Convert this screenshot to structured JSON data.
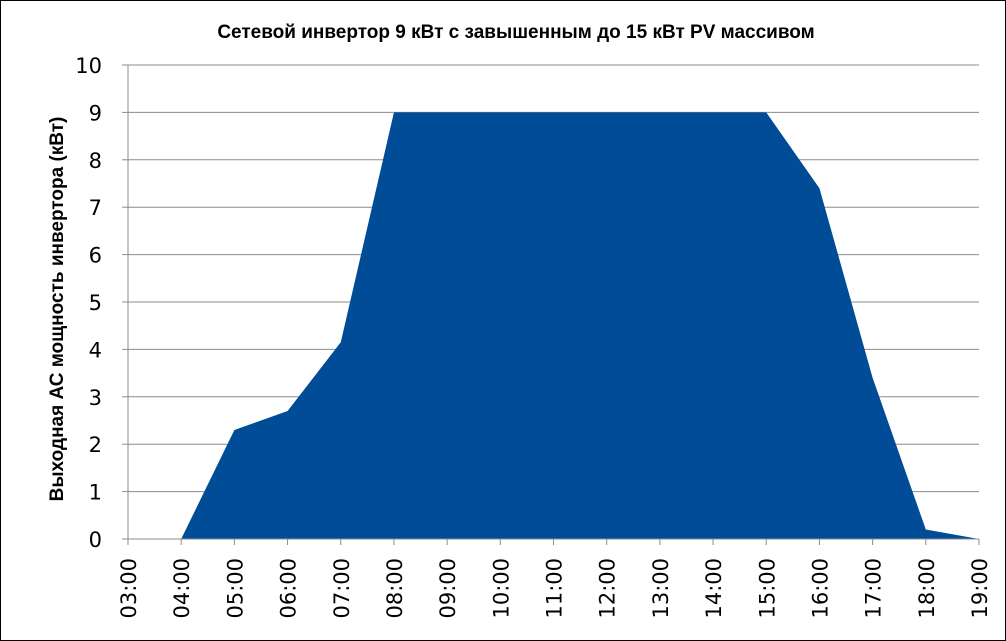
{
  "chart_data": {
    "type": "area",
    "title": "Сетевой инвертор 9 кВт с завышенным до 15 кВт PV массивом",
    "xlabel": "",
    "ylabel": "Выходная АС мощность инвертора (кВт)",
    "x": [
      "03:00",
      "04:00",
      "05:00",
      "06:00",
      "07:00",
      "08:00",
      "09:00",
      "10:00",
      "11:00",
      "12:00",
      "13:00",
      "14:00",
      "15:00",
      "16:00",
      "17:00",
      "18:00",
      "19:00"
    ],
    "yticks": [
      "0",
      "1",
      "2",
      "3",
      "4",
      "5",
      "6",
      "7",
      "8",
      "9",
      "10"
    ],
    "ylim": [
      0,
      10
    ],
    "grid": true,
    "legend": "none",
    "color": "#004C97",
    "series": [
      {
        "points": [
          [
            "04:00",
            0
          ],
          [
            "05:00",
            2.3
          ],
          [
            "06:00",
            2.7
          ],
          [
            "07:00",
            4.15
          ],
          [
            "08:00",
            9.0
          ],
          [
            "09:00",
            9.0
          ],
          [
            "10:00",
            9.0
          ],
          [
            "11:00",
            9.0
          ],
          [
            "12:00",
            9.0
          ],
          [
            "13:00",
            9.0
          ],
          [
            "14:00",
            9.0
          ],
          [
            "15:00",
            9.0
          ],
          [
            "16:00",
            7.4
          ],
          [
            "17:00",
            3.4
          ],
          [
            "18:00",
            0.2
          ],
          [
            "19:00",
            0
          ]
        ]
      }
    ]
  }
}
